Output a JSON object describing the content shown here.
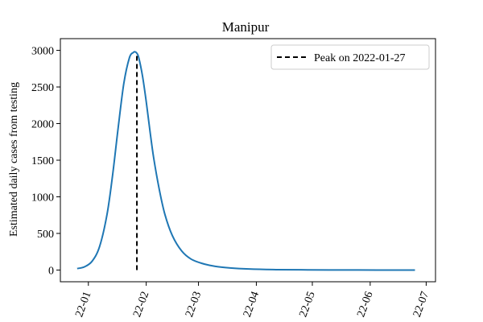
{
  "chart_data": {
    "type": "line",
    "title": "Manipur",
    "xlabel": "",
    "ylabel": "Estimated daily cases from testing",
    "xlim": [
      "2021-12-17",
      "2022-07-06"
    ],
    "ylim": [
      -160,
      3160
    ],
    "y_ticks": [
      0,
      500,
      1000,
      1500,
      2000,
      2500,
      3000
    ],
    "x_ticks": [
      {
        "date": "2022-01-01",
        "label": "22-01"
      },
      {
        "date": "2022-02-01",
        "label": "22-02"
      },
      {
        "date": "2022-03-01",
        "label": "22-03"
      },
      {
        "date": "2022-04-01",
        "label": "22-04"
      },
      {
        "date": "2022-05-01",
        "label": "22-05"
      },
      {
        "date": "2022-06-01",
        "label": "22-06"
      },
      {
        "date": "2022-07-01",
        "label": "22-07"
      }
    ],
    "series": [
      {
        "color": "#1f77b4",
        "x": [
          "2021-12-26",
          "2021-12-30",
          "2022-01-03",
          "2022-01-07",
          "2022-01-11",
          "2022-01-14",
          "2022-01-17",
          "2022-01-20",
          "2022-01-23",
          "2022-01-25",
          "2022-01-26",
          "2022-01-27",
          "2022-01-28",
          "2022-01-30",
          "2022-02-01",
          "2022-02-03",
          "2022-02-05",
          "2022-02-08",
          "2022-02-11",
          "2022-02-15",
          "2022-02-20",
          "2022-02-25",
          "2022-03-03",
          "2022-03-10",
          "2022-03-18",
          "2022-03-28",
          "2022-04-10",
          "2022-04-25",
          "2022-05-15",
          "2022-06-05",
          "2022-06-25"
        ],
        "y": [
          20,
          45,
          120,
          320,
          760,
          1300,
          1950,
          2550,
          2900,
          2970,
          2980,
          2960,
          2900,
          2650,
          2300,
          1900,
          1530,
          1100,
          760,
          470,
          260,
          150,
          90,
          50,
          28,
          14,
          6,
          3,
          1,
          0,
          0
        ]
      }
    ],
    "peak": {
      "date": "2022-01-27",
      "y_range": [
        0,
        2960
      ],
      "color": "#000000",
      "style": "dashed"
    },
    "legend": {
      "position": "top-right",
      "entries": [
        {
          "label": "Peak on 2022-01-27",
          "style": "dashed",
          "color": "#000000"
        }
      ]
    },
    "grid": false
  }
}
